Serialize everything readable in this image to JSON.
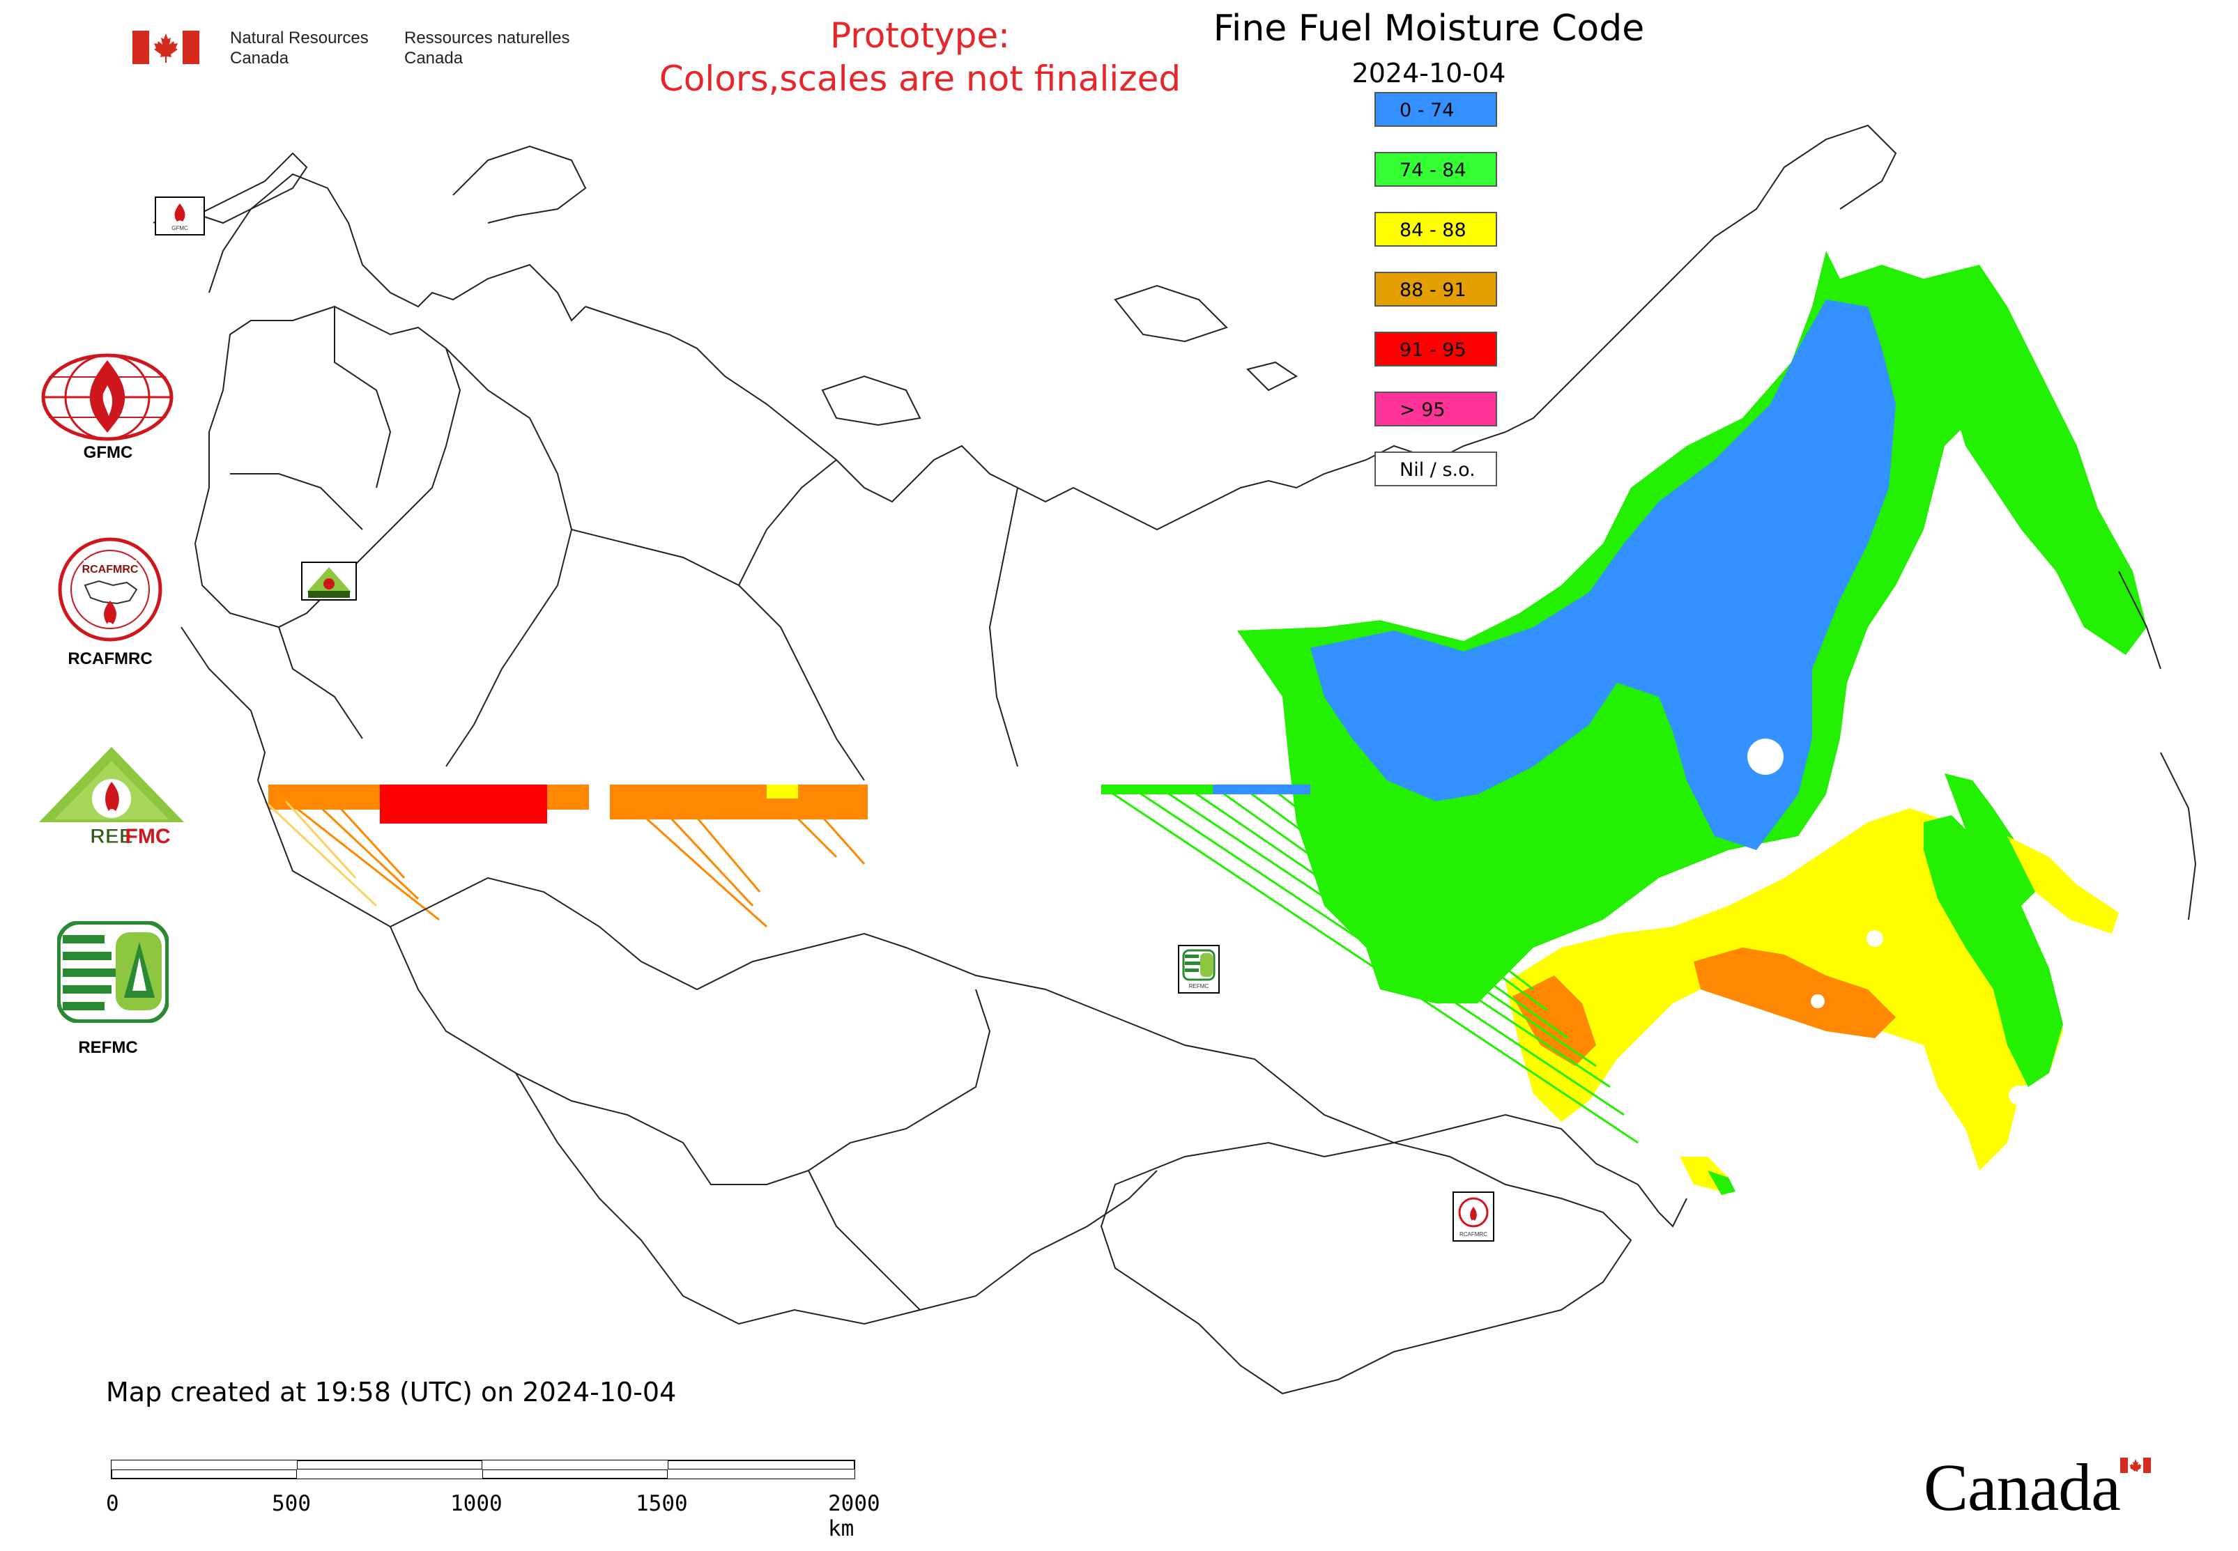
{
  "header": {
    "department_en": [
      "Natural Resources",
      "Canada"
    ],
    "department_fr": [
      "Ressources naturelles",
      "Canada"
    ],
    "prototype_notice": [
      "Prototype:",
      "Colors,scales are not finalized"
    ]
  },
  "map": {
    "title": "Fine Fuel Moisture Code",
    "date": "2024-10-04",
    "legend": [
      {
        "label": "0 - 74",
        "color": "#3392ff"
      },
      {
        "label": "74 - 84",
        "color": "#33ff33"
      },
      {
        "label": "84 - 88",
        "color": "#ffff00"
      },
      {
        "label": "88 - 91",
        "color": "#e3a000"
      },
      {
        "label": "91 - 95",
        "color": "#ff0000"
      },
      {
        "label": "> 95",
        "color": "#ff3399"
      },
      {
        "label": "Nil / s.o.",
        "color": "#ffffff"
      }
    ]
  },
  "logos": {
    "gfmc": "GFMC",
    "rcafmrc": "RCAFMRC",
    "reefmc": "REEFMC",
    "refmc": "REFMC",
    "gfmc_small": "GFMC",
    "rcafmrc_small": "RCAFMRC",
    "refmc_small": "REFMC"
  },
  "footer": {
    "created": "Map created at 19:58 (UTC) on 2024-10-04",
    "scale_labels": [
      "0",
      "500",
      "1000",
      "1500",
      "2000 km"
    ],
    "wordmark": "Canada"
  }
}
